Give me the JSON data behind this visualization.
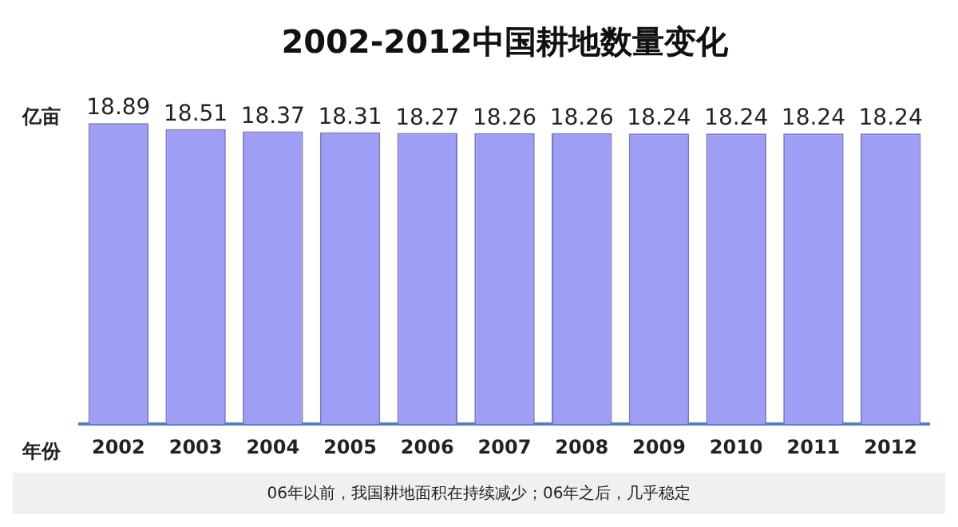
{
  "chart_data": {
    "type": "bar",
    "title": "2002-2012中国耕地数量变化",
    "ylabel": "亿亩",
    "xlabel": "年份",
    "categories": [
      "2002",
      "2003",
      "2004",
      "2005",
      "2006",
      "2007",
      "2008",
      "2009",
      "2010",
      "2011",
      "2012"
    ],
    "values": [
      18.89,
      18.51,
      18.37,
      18.31,
      18.27,
      18.26,
      18.26,
      18.24,
      18.24,
      18.24,
      18.24
    ],
    "color": "#9e9ef4",
    "data_labels": true,
    "grid": false,
    "legend": false,
    "tick_labels": "x",
    "annotations": [
      "06年以前，我国耕地面积在持续减少；06年之后，几乎稳定"
    ]
  }
}
